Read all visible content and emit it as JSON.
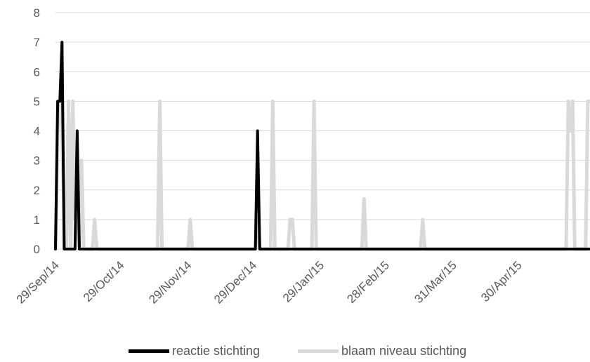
{
  "chart_data": {
    "type": "line",
    "title": "",
    "xlabel": "",
    "ylabel": "",
    "ylim": [
      0,
      8
    ],
    "y_ticks": [
      "0",
      "1",
      "2",
      "3",
      "4",
      "5",
      "6",
      "7",
      "8"
    ],
    "x_range": [
      "2014-09-29",
      "2015-06-02"
    ],
    "x_tick_labels": [
      {
        "date": "2014-09-29",
        "label": "29/Sep/14"
      },
      {
        "date": "2014-10-29",
        "label": "29/Oct/14"
      },
      {
        "date": "2014-11-29",
        "label": "29/Nov/14"
      },
      {
        "date": "2014-12-29",
        "label": "29/Dec/14"
      },
      {
        "date": "2015-01-29",
        "label": "29/Jan/15"
      },
      {
        "date": "2015-02-28",
        "label": "28/Feb/15"
      },
      {
        "date": "2015-03-31",
        "label": "31/Mar/15"
      },
      {
        "date": "2015-04-30",
        "label": "30/Apr/15"
      }
    ],
    "grid": "horizontal",
    "legend_position": "bottom",
    "series": [
      {
        "name": "reactie stichting",
        "color": "#000000",
        "points": [
          [
            "2014-09-29",
            0
          ],
          [
            "2014-09-30",
            5
          ],
          [
            "2014-10-01",
            5
          ],
          [
            "2014-10-02",
            7
          ],
          [
            "2014-10-03",
            0
          ],
          [
            "2014-10-08",
            0
          ],
          [
            "2014-10-09",
            4
          ],
          [
            "2014-10-10",
            0
          ],
          [
            "2014-12-30",
            0
          ],
          [
            "2014-12-31",
            4
          ],
          [
            "2015-01-01",
            0
          ],
          [
            "2015-06-02",
            0
          ]
        ]
      },
      {
        "name": "blaam niveau stichting",
        "color": "#d9d9d9",
        "points": [
          [
            "2014-09-29",
            0
          ],
          [
            "2014-09-30",
            4
          ],
          [
            "2014-10-01",
            5
          ],
          [
            "2014-10-02",
            4
          ],
          [
            "2014-10-03",
            1
          ],
          [
            "2014-10-04",
            0
          ],
          [
            "2014-10-05",
            5
          ],
          [
            "2014-10-06",
            0
          ],
          [
            "2014-10-07",
            5
          ],
          [
            "2014-10-08",
            1
          ],
          [
            "2014-10-09",
            1
          ],
          [
            "2014-10-10",
            0
          ],
          [
            "2014-10-11",
            3
          ],
          [
            "2014-10-12",
            0
          ],
          [
            "2014-10-16",
            0
          ],
          [
            "2014-10-17",
            1
          ],
          [
            "2014-10-18",
            0
          ],
          [
            "2014-11-15",
            0
          ],
          [
            "2014-11-16",
            5
          ],
          [
            "2014-11-17",
            0
          ],
          [
            "2014-11-29",
            0
          ],
          [
            "2014-11-30",
            1
          ],
          [
            "2014-12-01",
            0
          ],
          [
            "2014-12-30",
            0
          ],
          [
            "2014-12-31",
            1
          ],
          [
            "2015-01-01",
            0
          ],
          [
            "2015-01-06",
            0
          ],
          [
            "2015-01-07",
            5
          ],
          [
            "2015-01-08",
            0
          ],
          [
            "2015-01-14",
            0
          ],
          [
            "2015-01-15",
            1
          ],
          [
            "2015-01-16",
            1
          ],
          [
            "2015-01-17",
            0
          ],
          [
            "2015-01-25",
            0
          ],
          [
            "2015-01-26",
            5
          ],
          [
            "2015-01-27",
            0
          ],
          [
            "2015-02-17",
            0
          ],
          [
            "2015-02-18",
            1.7
          ],
          [
            "2015-02-19",
            0
          ],
          [
            "2015-03-16",
            0
          ],
          [
            "2015-03-17",
            1
          ],
          [
            "2015-03-18",
            0
          ],
          [
            "2015-05-22",
            0
          ],
          [
            "2015-05-23",
            5
          ],
          [
            "2015-05-24",
            4
          ],
          [
            "2015-05-25",
            5
          ],
          [
            "2015-05-26",
            0
          ],
          [
            "2015-05-27",
            0
          ],
          [
            "2015-05-28",
            0
          ],
          [
            "2015-05-31",
            0
          ],
          [
            "2015-06-01",
            5
          ],
          [
            "2015-06-02",
            5
          ]
        ]
      }
    ]
  }
}
